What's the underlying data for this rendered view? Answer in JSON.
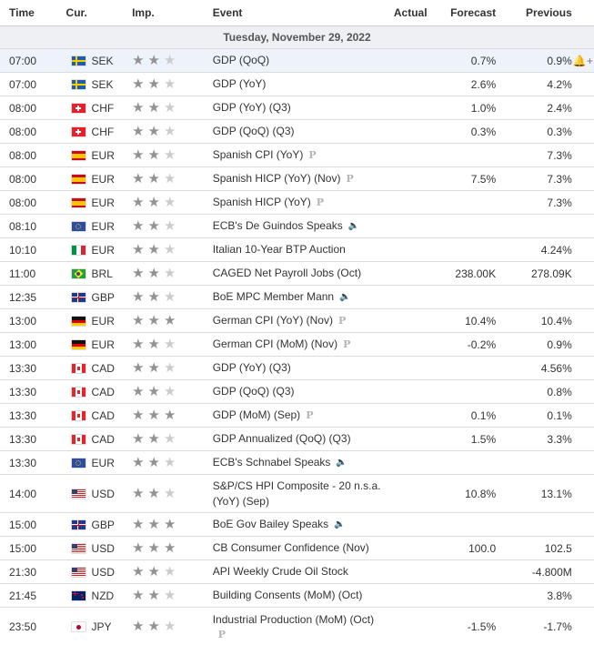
{
  "columns": {
    "time": "Time",
    "cur": "Cur.",
    "imp": "Imp.",
    "event": "Event",
    "actual": "Actual",
    "forecast": "Forecast",
    "previous": "Previous"
  },
  "date_label": "Tuesday, November 29, 2022",
  "colors": {
    "star_on": "#929292",
    "star_off": "#cccccc",
    "row_highlight": "#eef3fb",
    "date_bg": "#eef0f3"
  },
  "rows": [
    {
      "time": "07:00",
      "flag": "se",
      "cur": "SEK",
      "stars": 2,
      "event": "GDP (QoQ)",
      "icon": "",
      "actual": "",
      "forecast": "0.7%",
      "previous": "0.9%",
      "alert": true
    },
    {
      "time": "07:00",
      "flag": "se",
      "cur": "SEK",
      "stars": 2,
      "event": "GDP (YoY)",
      "icon": "",
      "actual": "",
      "forecast": "2.6%",
      "previous": "4.2%"
    },
    {
      "time": "08:00",
      "flag": "ch",
      "cur": "CHF",
      "stars": 2,
      "event": "GDP (YoY) (Q3)",
      "icon": "",
      "actual": "",
      "forecast": "1.0%",
      "previous": "2.4%"
    },
    {
      "time": "08:00",
      "flag": "ch",
      "cur": "CHF",
      "stars": 2,
      "event": "GDP (QoQ) (Q3)",
      "icon": "",
      "actual": "",
      "forecast": "0.3%",
      "previous": "0.3%"
    },
    {
      "time": "08:00",
      "flag": "es",
      "cur": "EUR",
      "stars": 2,
      "event": "Spanish CPI (YoY)",
      "icon": "p",
      "actual": "",
      "forecast": "",
      "previous": "7.3%"
    },
    {
      "time": "08:00",
      "flag": "es",
      "cur": "EUR",
      "stars": 2,
      "event": "Spanish HICP (YoY) (Nov)",
      "icon": "p",
      "actual": "",
      "forecast": "7.5%",
      "previous": "7.3%"
    },
    {
      "time": "08:00",
      "flag": "es",
      "cur": "EUR",
      "stars": 2,
      "event": "Spanish HICP (YoY)",
      "icon": "p",
      "actual": "",
      "forecast": "",
      "previous": "7.3%"
    },
    {
      "time": "08:10",
      "flag": "eu",
      "cur": "EUR",
      "stars": 2,
      "event": "ECB's De Guindos Speaks",
      "icon": "speak",
      "actual": "",
      "forecast": "",
      "previous": ""
    },
    {
      "time": "10:10",
      "flag": "it",
      "cur": "EUR",
      "stars": 2,
      "event": "Italian 10-Year BTP Auction",
      "icon": "",
      "actual": "",
      "forecast": "",
      "previous": "4.24%"
    },
    {
      "time": "11:00",
      "flag": "br",
      "cur": "BRL",
      "stars": 2,
      "event": "CAGED Net Payroll Jobs (Oct)",
      "icon": "",
      "actual": "",
      "forecast": "238.00K",
      "previous": "278.09K"
    },
    {
      "time": "12:35",
      "flag": "gb",
      "cur": "GBP",
      "stars": 2,
      "event": "BoE MPC Member Mann",
      "icon": "speak",
      "actual": "",
      "forecast": "",
      "previous": ""
    },
    {
      "time": "13:00",
      "flag": "de",
      "cur": "EUR",
      "stars": 3,
      "event": "German CPI (YoY) (Nov)",
      "icon": "p",
      "actual": "",
      "forecast": "10.4%",
      "previous": "10.4%"
    },
    {
      "time": "13:00",
      "flag": "de",
      "cur": "EUR",
      "stars": 2,
      "event": "German CPI (MoM) (Nov)",
      "icon": "p",
      "actual": "",
      "forecast": "-0.2%",
      "previous": "0.9%"
    },
    {
      "time": "13:30",
      "flag": "ca",
      "cur": "CAD",
      "stars": 2,
      "event": "GDP (YoY) (Q3)",
      "icon": "",
      "actual": "",
      "forecast": "",
      "previous": "4.56%"
    },
    {
      "time": "13:30",
      "flag": "ca",
      "cur": "CAD",
      "stars": 2,
      "event": "GDP (QoQ) (Q3)",
      "icon": "",
      "actual": "",
      "forecast": "",
      "previous": "0.8%"
    },
    {
      "time": "13:30",
      "flag": "ca",
      "cur": "CAD",
      "stars": 3,
      "event": "GDP (MoM) (Sep)",
      "icon": "p",
      "actual": "",
      "forecast": "0.1%",
      "previous": "0.1%"
    },
    {
      "time": "13:30",
      "flag": "ca",
      "cur": "CAD",
      "stars": 2,
      "event": "GDP Annualized (QoQ) (Q3)",
      "icon": "",
      "actual": "",
      "forecast": "1.5%",
      "previous": "3.3%"
    },
    {
      "time": "13:30",
      "flag": "eu",
      "cur": "EUR",
      "stars": 2,
      "event": "ECB's Schnabel Speaks",
      "icon": "speak",
      "actual": "",
      "forecast": "",
      "previous": ""
    },
    {
      "time": "14:00",
      "flag": "us",
      "cur": "USD",
      "stars": 2,
      "event": "S&P/CS HPI Composite - 20 n.s.a. (YoY) (Sep)",
      "icon": "",
      "actual": "",
      "forecast": "10.8%",
      "previous": "13.1%",
      "tall": true
    },
    {
      "time": "15:00",
      "flag": "gb",
      "cur": "GBP",
      "stars": 3,
      "event": "BoE Gov Bailey Speaks",
      "icon": "speak",
      "actual": "",
      "forecast": "",
      "previous": ""
    },
    {
      "time": "15:00",
      "flag": "us",
      "cur": "USD",
      "stars": 3,
      "event": "CB Consumer Confidence (Nov)",
      "icon": "",
      "actual": "",
      "forecast": "100.0",
      "previous": "102.5"
    },
    {
      "time": "21:30",
      "flag": "us",
      "cur": "USD",
      "stars": 2,
      "event": "API Weekly Crude Oil Stock",
      "icon": "",
      "actual": "",
      "forecast": "",
      "previous": "-4.800M"
    },
    {
      "time": "21:45",
      "flag": "nz",
      "cur": "NZD",
      "stars": 2,
      "event": "Building Consents (MoM) (Oct)",
      "icon": "",
      "actual": "",
      "forecast": "",
      "previous": "3.8%"
    },
    {
      "time": "23:50",
      "flag": "jp",
      "cur": "JPY",
      "stars": 2,
      "event": "Industrial Production (MoM) (Oct)",
      "icon": "p",
      "actual": "",
      "forecast": "-1.5%",
      "previous": "-1.7%",
      "tall": true
    }
  ]
}
